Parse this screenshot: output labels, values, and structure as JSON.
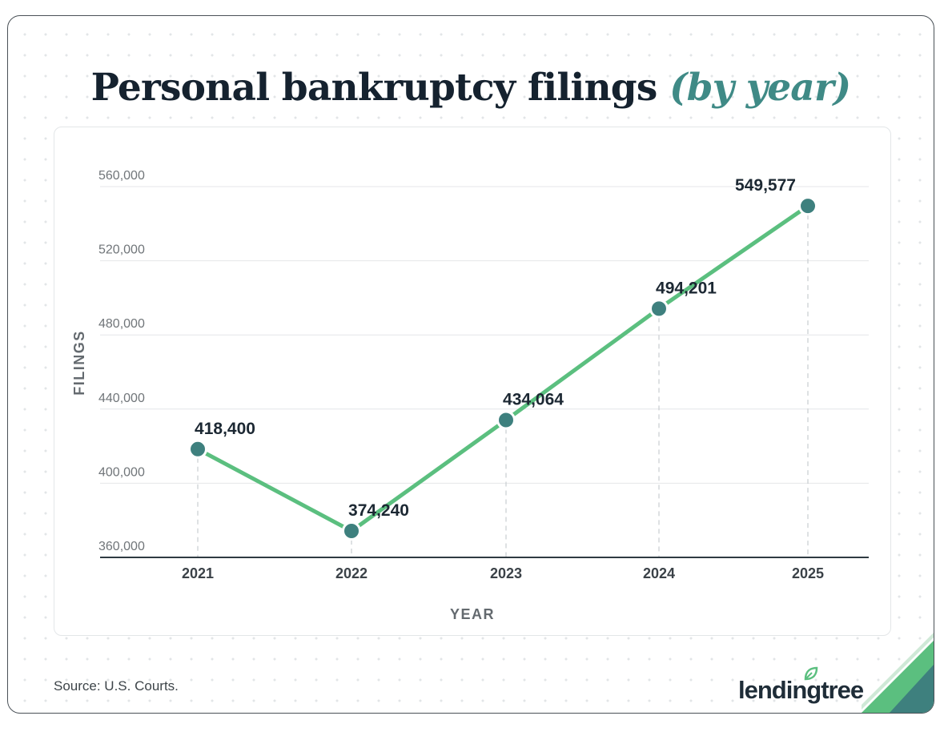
{
  "chart_data": {
    "type": "line",
    "title": "Personal bankruptcy filings",
    "title_accent": "(by year)",
    "xlabel": "YEAR",
    "ylabel": "FILINGS",
    "categories": [
      "2021",
      "2022",
      "2023",
      "2024",
      "2025"
    ],
    "values": [
      418400,
      374240,
      434064,
      494201,
      549577
    ],
    "data_labels": [
      "418,400",
      "374,240",
      "434,064",
      "494,201",
      "549,577"
    ],
    "ylim": [
      360000,
      560000
    ],
    "yticks": [
      360000,
      400000,
      440000,
      480000,
      520000,
      560000
    ],
    "ytick_labels": [
      "360,000",
      "400,000",
      "440,000",
      "480,000",
      "520,000",
      "560,000"
    ],
    "grid": true,
    "line_color": "#5bbf7f",
    "marker_color": "#3e807e"
  },
  "footer": {
    "source": "Source: U.S. Courts.",
    "logo_text": "lendingtree",
    "logo_icon": "leaf-icon",
    "accent_color": "#5bbf7f"
  }
}
